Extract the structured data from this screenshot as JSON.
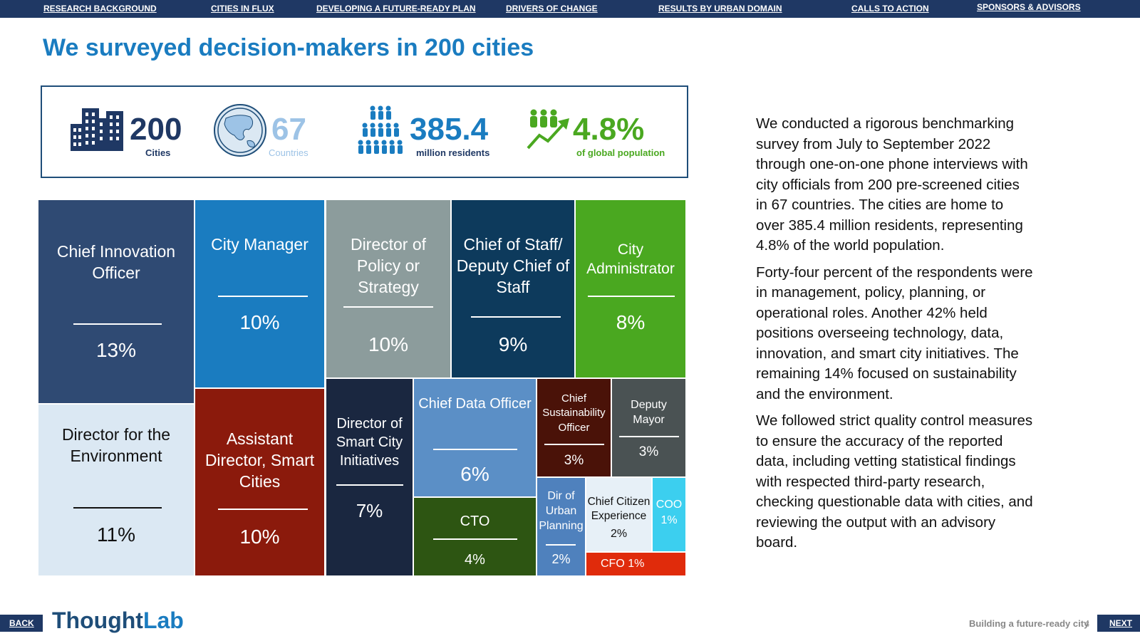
{
  "nav": {
    "items": [
      "RESEARCH BACKGROUND",
      "CITIES IN FLUX",
      "DEVELOPING A FUTURE-READY PLAN",
      "DRIVERS OF CHANGE",
      "RESULTS BY URBAN DOMAIN",
      "CALLS TO ACTION",
      "SPONSORS & ADVISORS"
    ]
  },
  "title": "We surveyed decision-makers in 200 cities",
  "stats": [
    {
      "value": "200",
      "label": "Cities",
      "icon": "buildings-icon",
      "color": "#1f3864"
    },
    {
      "value": "67",
      "label": "Countries",
      "icon": "globe-icon",
      "color": "#9dc3e6"
    },
    {
      "value": "385.4",
      "label": "million residents",
      "icon": "people-icon",
      "color": "#1a7cc0"
    },
    {
      "value": "4.8%",
      "label": "of global population",
      "icon": "growth-people-icon",
      "color": "#4aa820"
    }
  ],
  "treemap": [
    {
      "label": "Chief Innovation Officer",
      "pct": "13%",
      "color": "#2f4a73"
    },
    {
      "label": "Director for the Environment",
      "pct": "11%",
      "color": "#dbe8f3"
    },
    {
      "label": "City Manager",
      "pct": "10%",
      "color": "#1a7cc0"
    },
    {
      "label": "Assistant Director, Smart Cities",
      "pct": "10%",
      "color": "#8b1a0c"
    },
    {
      "label": "Director of Policy or Strategy",
      "pct": "10%",
      "color": "#8c9c9c"
    },
    {
      "label": "Chief of Staff/ Deputy Chief of Staff",
      "pct": "9%",
      "color": "#0d3a5c"
    },
    {
      "label": "City Administrator",
      "pct": "8%",
      "color": "#4aa820"
    },
    {
      "label": "Director of Smart City Initiatives",
      "pct": "7%",
      "color": "#1a2740"
    },
    {
      "label": "Chief Data Officer",
      "pct": "6%",
      "color": "#5b8fc6"
    },
    {
      "label": "CTO",
      "pct": "4%",
      "color": "#2d5512"
    },
    {
      "label": "Chief Sustainability Officer",
      "pct": "3%",
      "color": "#4a1208"
    },
    {
      "label": "Deputy Mayor",
      "pct": "3%",
      "color": "#4a5253"
    },
    {
      "label": "Dir of Urban Planning",
      "pct": "2%",
      "color": "#4f81bd"
    },
    {
      "label": "Chief Citizen Experience",
      "pct": "2%",
      "color": "#e7f0f7"
    },
    {
      "label": "COO",
      "pct": "1%",
      "color": "#3ccfef"
    },
    {
      "label": "CFO 1%",
      "pct": "",
      "color": "#e02b0b"
    }
  ],
  "body": {
    "paragraphs": [
      "We conducted a rigorous benchmarking survey from July to September 2022 through one-on-one phone interviews with city officials from 200 pre-screened cities in 67 countries. The cities are home to over 385.4 million residents, representing 4.8% of the world population.",
      "Forty-four percent of the respondents were in management, policy, planning, or operational roles. Another 42% held positions overseeing technology, data, innovation, and smart city initiatives. The remaining 14% focused on sustainability and the environment.",
      "We followed strict quality control measures to ensure the accuracy of the reported data, including vetting statistical findings with respected third-party research, checking questionable data with cities, and reviewing the output with an advisory board."
    ]
  },
  "footer": {
    "back_label": "BACK",
    "next_label": "NEXT",
    "logo_part1": "Thought",
    "logo_part2": "Lab",
    "caption": "Building a future-ready city",
    "page_number": "4"
  }
}
